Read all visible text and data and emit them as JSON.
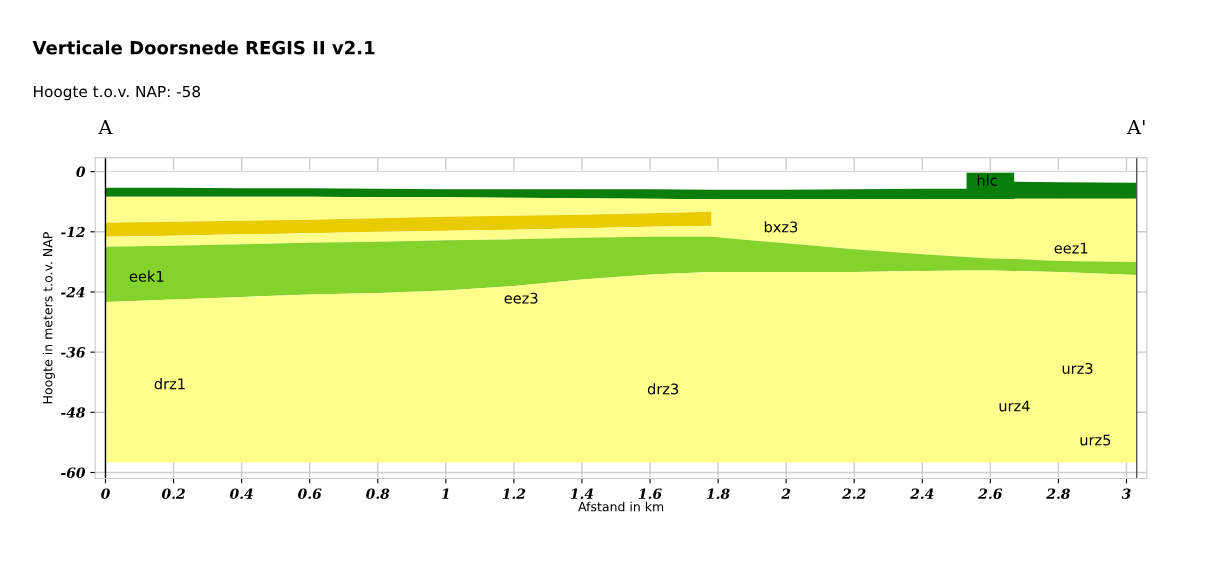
{
  "chart_data": {
    "type": "area",
    "stacked": true,
    "title": "Verticale Doorsnede REGIS II v2.1",
    "subtitle": "Hoogte t.o.v. NAP: -58",
    "xlabel": "Afstand in km",
    "ylabel": "Hoogte in meters t.o.v. NAP",
    "x": [
      0,
      0.2,
      0.4,
      0.6,
      0.8,
      1.0,
      1.2,
      1.4,
      1.6,
      1.78,
      1.78,
      2.0,
      2.2,
      2.4,
      2.53,
      2.53,
      2.6,
      2.67,
      2.67,
      2.8,
      3.03
    ],
    "series": [
      {
        "color": "#ffffff",
        "values": [
          -3.2,
          -3.2,
          -3.3,
          -3.3,
          -3.4,
          -3.5,
          -3.5,
          -3.5,
          -3.5,
          -3.6,
          -3.6,
          -3.6,
          -3.5,
          -3.4,
          -3.4,
          -0.2,
          -0.2,
          -0.2,
          -2,
          -2.1,
          -2.2
        ]
      },
      {
        "color": "#0a7d0a",
        "values": [
          -1.8,
          -1.8,
          -1.7,
          -1.7,
          -1.7,
          -1.6,
          -1.7,
          -1.8,
          -1.9,
          -1.9,
          -1.9,
          -1.9,
          -2.0,
          -2.1,
          -2.1,
          -5.3,
          -5.3,
          -5.3,
          -3.4,
          -3.3,
          -3.2
        ]
      },
      {
        "color": "#ffff8c",
        "values": [
          -5.2,
          -5,
          -4.8,
          -4.6,
          -4.2,
          -3.9,
          -3.6,
          -3.3,
          -2.9,
          -2.5,
          -7.5,
          -8.8,
          -10,
          -11,
          -11.5,
          -11.5,
          -11.8,
          -11.9,
          -12,
          -12.4,
          -12.6
        ]
      },
      {
        "color": "#e8cc00",
        "values": [
          -2.8,
          -2.8,
          -2.7,
          -2.7,
          -2.7,
          -2.8,
          -2.8,
          -2.7,
          -2.7,
          -2.8,
          0,
          0,
          0,
          0,
          0,
          0,
          0,
          0,
          0,
          0,
          0
        ]
      },
      {
        "color": "#ffff8c",
        "values": [
          -2,
          -2,
          -2,
          -1.9,
          -2,
          -1.9,
          -1.9,
          -1.9,
          -2,
          -2.2,
          0,
          0,
          0,
          0,
          0,
          0,
          0,
          0,
          0,
          0,
          0
        ]
      },
      {
        "color": "#84d22c",
        "values": [
          -11,
          -10.7,
          -10.5,
          -10.3,
          -10.2,
          -10,
          -9.3,
          -8.3,
          -7.5,
          -7,
          -7,
          -5.7,
          -4.5,
          -3.3,
          -2.7,
          -2.7,
          -2.4,
          -2.4,
          -2.4,
          -2.2,
          -2.6
        ]
      },
      {
        "color": "#ffff8c",
        "values": [
          -32,
          -32.5,
          -33,
          -33.5,
          -33.8,
          -34.3,
          -35.2,
          -36.5,
          -37.5,
          -38,
          -38,
          -38,
          -38,
          -38.2,
          -38.3,
          -38.3,
          -38.3,
          -38.2,
          -38.2,
          -38,
          -37.4
        ]
      }
    ],
    "annotations": [
      "hlc",
      "bxz3",
      "eez1",
      "eek1",
      "eez3",
      "drz1",
      "drz3",
      "urz3",
      "urz4",
      "urz5"
    ],
    "ref_lines": [
      {
        "axis": "x",
        "value": 0,
        "label": "A",
        "color": "#000000"
      },
      {
        "axis": "x",
        "value": 3.03,
        "label": "A'",
        "color": "#555555"
      }
    ],
    "xlim": [
      -0.03,
      3.06
    ],
    "ylim": [
      -61.2,
      2.8
    ],
    "xticks": [
      0,
      0.2,
      0.4,
      0.6,
      0.8,
      1,
      1.2,
      1.4,
      1.6,
      1.8,
      2,
      2.2,
      2.4,
      2.6,
      2.8,
      3
    ],
    "yticks": [
      0,
      -12,
      -24,
      -36,
      -48,
      -60
    ],
    "grid": true
  }
}
